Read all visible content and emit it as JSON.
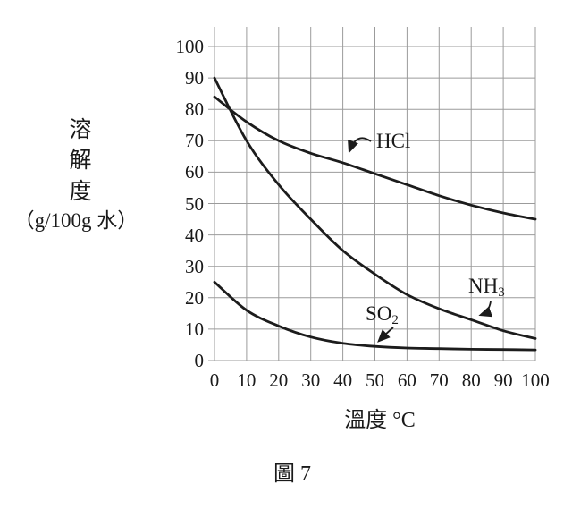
{
  "figure": {
    "caption": "圖 7"
  },
  "chart_data": {
    "type": "line",
    "title": "",
    "xlabel": "溫度 °C",
    "ylabel": "溶解度（g/100g 水）",
    "ylabel_stack": [
      "溶",
      "解",
      "度"
    ],
    "ylabel_unit": "（g/100g 水）",
    "xlim": [
      0,
      100
    ],
    "ylim": [
      0,
      100
    ],
    "x_ticks": [
      0,
      10,
      20,
      30,
      40,
      50,
      60,
      70,
      80,
      90,
      100
    ],
    "y_ticks": [
      0,
      10,
      20,
      30,
      40,
      50,
      60,
      70,
      80,
      90,
      100
    ],
    "grid": true,
    "legend_position": "inline-annotations",
    "x": [
      0,
      10,
      20,
      30,
      40,
      50,
      60,
      70,
      80,
      90,
      100
    ],
    "series": [
      {
        "name": "HCl",
        "values": [
          84,
          76,
          70,
          66,
          63,
          59.5,
          56,
          52.5,
          49.5,
          47,
          45
        ]
      },
      {
        "name": "NH3",
        "values": [
          90,
          70,
          56,
          45,
          35,
          27.5,
          21,
          16.5,
          13,
          9.5,
          7
        ]
      },
      {
        "name": "SO2",
        "values": [
          25,
          16,
          11,
          7.5,
          5.5,
          4.5,
          4,
          3.8,
          3.6,
          3.5,
          3.4
        ]
      }
    ],
    "annotations": [
      {
        "series": "HCl",
        "text": "HCl",
        "sub": "",
        "target_x": 42,
        "target_y": 64
      },
      {
        "series": "NH3",
        "text": "NH",
        "sub": "3",
        "target_x": 82,
        "target_y": 14
      },
      {
        "series": "SO2",
        "text": "SO",
        "sub": "2",
        "target_x": 51,
        "target_y": 4.5
      }
    ],
    "line_color": "#1c1c1c",
    "grid_color": "#9b9b9b"
  }
}
